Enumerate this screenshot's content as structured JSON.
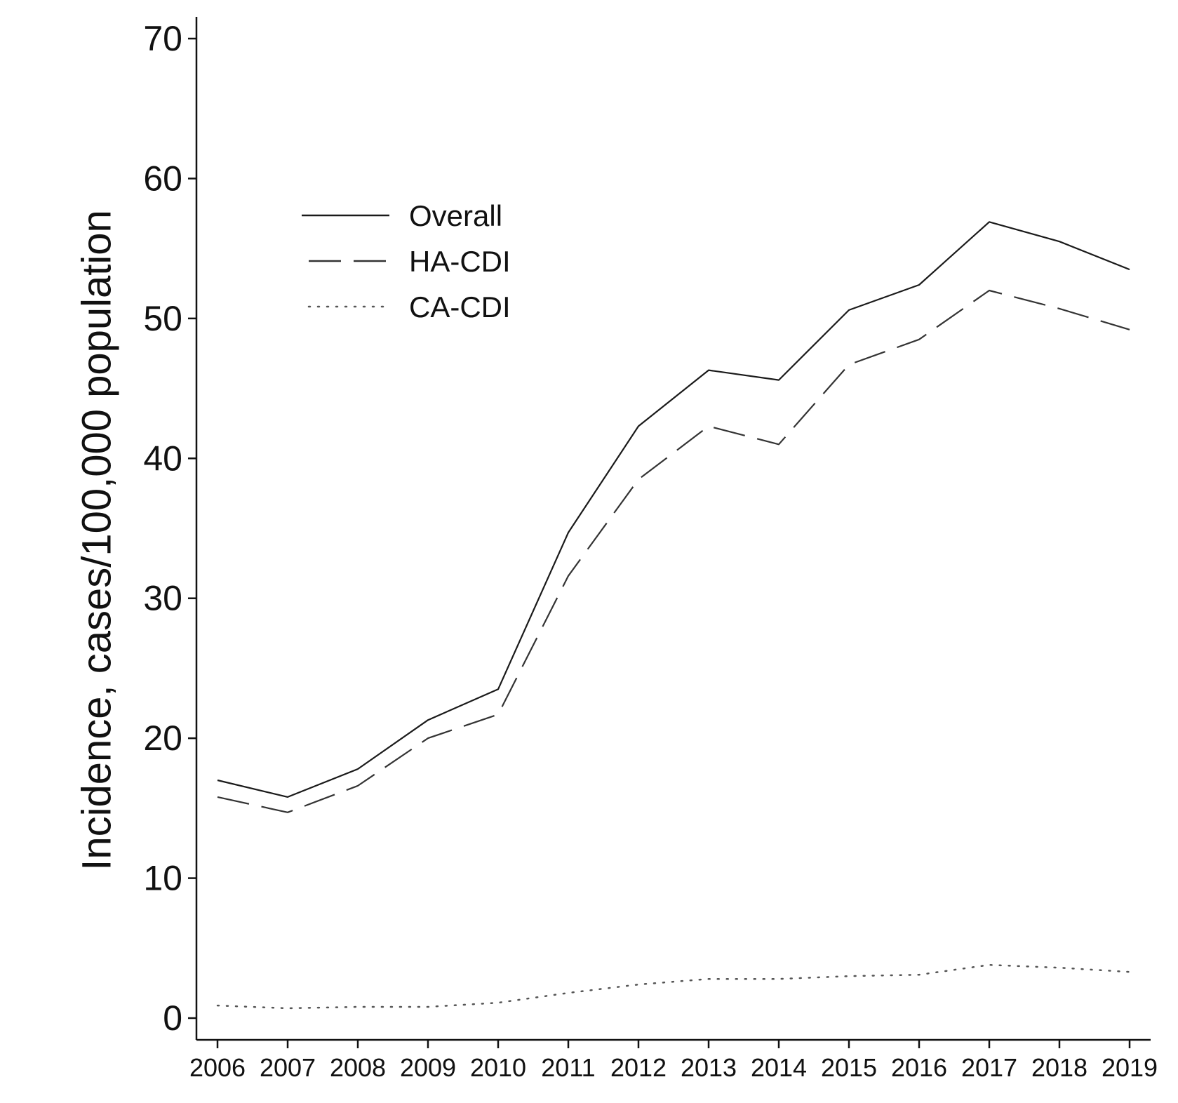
{
  "chart_data": {
    "type": "line",
    "title": "",
    "xlabel": "",
    "ylabel": "Incidence, cases/100,000 population",
    "x": [
      2006,
      2007,
      2008,
      2009,
      2010,
      2011,
      2012,
      2013,
      2014,
      2015,
      2016,
      2017,
      2018,
      2019
    ],
    "x_tick_labels": [
      "2006",
      "2007",
      "2008",
      "2009",
      "2010",
      "2011",
      "2012",
      "2013",
      "2014",
      "2015",
      "2016",
      "2017",
      "2018",
      "2019"
    ],
    "ylim": [
      0,
      70
    ],
    "y_ticks": [
      0,
      10,
      20,
      30,
      40,
      50,
      60,
      70
    ],
    "y_tick_labels": [
      "0",
      "10",
      "20",
      "30",
      "40",
      "50",
      "60",
      "70"
    ],
    "grid": false,
    "legend_position": "top-left",
    "series": [
      {
        "name": "Overall",
        "style": "solid",
        "color": "#1a1a1a",
        "values": [
          17.0,
          15.8,
          17.8,
          21.3,
          23.5,
          34.7,
          42.3,
          46.3,
          45.6,
          50.6,
          52.4,
          56.9,
          55.5,
          53.5
        ]
      },
      {
        "name": "HA-CDI",
        "style": "dashed",
        "color": "#333333",
        "values": [
          15.8,
          14.7,
          16.6,
          20.0,
          21.7,
          31.6,
          38.5,
          42.3,
          41.0,
          46.7,
          48.5,
          52.0,
          50.7,
          49.2
        ]
      },
      {
        "name": "CA-CDI",
        "style": "dotted",
        "color": "#555555",
        "values": [
          0.9,
          0.7,
          0.8,
          0.8,
          1.1,
          1.8,
          2.4,
          2.8,
          2.8,
          3.0,
          3.1,
          3.8,
          3.6,
          3.3
        ]
      }
    ]
  }
}
